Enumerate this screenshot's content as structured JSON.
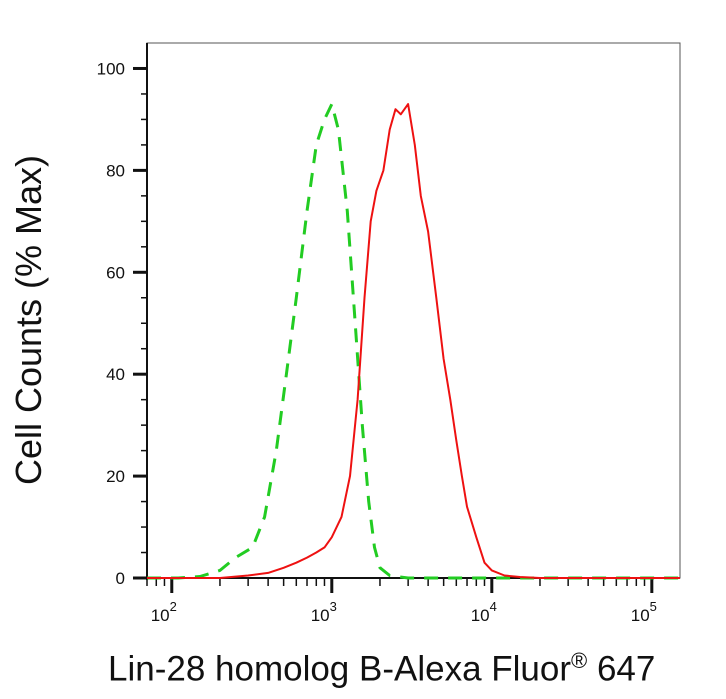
{
  "chart_data": {
    "type": "line",
    "xlabel": "Lin-28 homolog B-Alexa Fluor",
    "xlabel_sup": "®",
    "xlabel_tail": " 647",
    "ylabel": "Cell Counts (% Max)",
    "x_scale": "log",
    "xlim": [
      70,
      150000
    ],
    "ylim": [
      0,
      105
    ],
    "x_ticks": [
      {
        "value": 100,
        "base": "10",
        "exp": "2"
      },
      {
        "value": 1000,
        "base": "10",
        "exp": "3"
      },
      {
        "value": 10000,
        "base": "10",
        "exp": "4"
      },
      {
        "value": 100000,
        "base": "10",
        "exp": "5"
      }
    ],
    "y_ticks": [
      0,
      20,
      40,
      60,
      80,
      100
    ],
    "grid": false,
    "series": [
      {
        "color": "#22cc22",
        "style": "dashed",
        "x": [
          70,
          110,
          150,
          200,
          250,
          320,
          380,
          450,
          520,
          600,
          700,
          800,
          900,
          1000,
          1100,
          1250,
          1400,
          1550,
          1700,
          1850,
          2000,
          2300,
          3000,
          5000,
          10000,
          50000,
          150000
        ],
        "y": [
          0,
          0,
          0.3,
          1.5,
          4,
          6,
          12,
          25,
          40,
          55,
          72,
          85,
          90,
          93,
          88,
          72,
          50,
          30,
          15,
          6,
          2,
          0.5,
          0,
          0,
          0,
          0,
          0
        ]
      },
      {
        "color": "#ee1111",
        "style": "solid",
        "x": [
          70,
          200,
          300,
          400,
          500,
          600,
          700,
          800,
          900,
          1000,
          1150,
          1300,
          1450,
          1600,
          1750,
          1900,
          2100,
          2300,
          2500,
          2700,
          3000,
          3300,
          3600,
          4000,
          4500,
          5000,
          5500,
          6000,
          6500,
          7000,
          8000,
          9000,
          10000,
          12000,
          15000,
          20000,
          30000,
          50000,
          100000,
          150000
        ],
        "y": [
          0,
          0,
          0.5,
          1,
          2,
          3,
          4,
          5,
          6,
          8,
          12,
          20,
          35,
          55,
          70,
          76,
          80,
          88,
          92,
          91,
          93,
          85,
          75,
          68,
          55,
          43,
          35,
          27,
          20,
          14,
          8,
          3,
          1.5,
          0.5,
          0.2,
          0,
          0,
          0,
          0,
          0
        ]
      }
    ]
  }
}
